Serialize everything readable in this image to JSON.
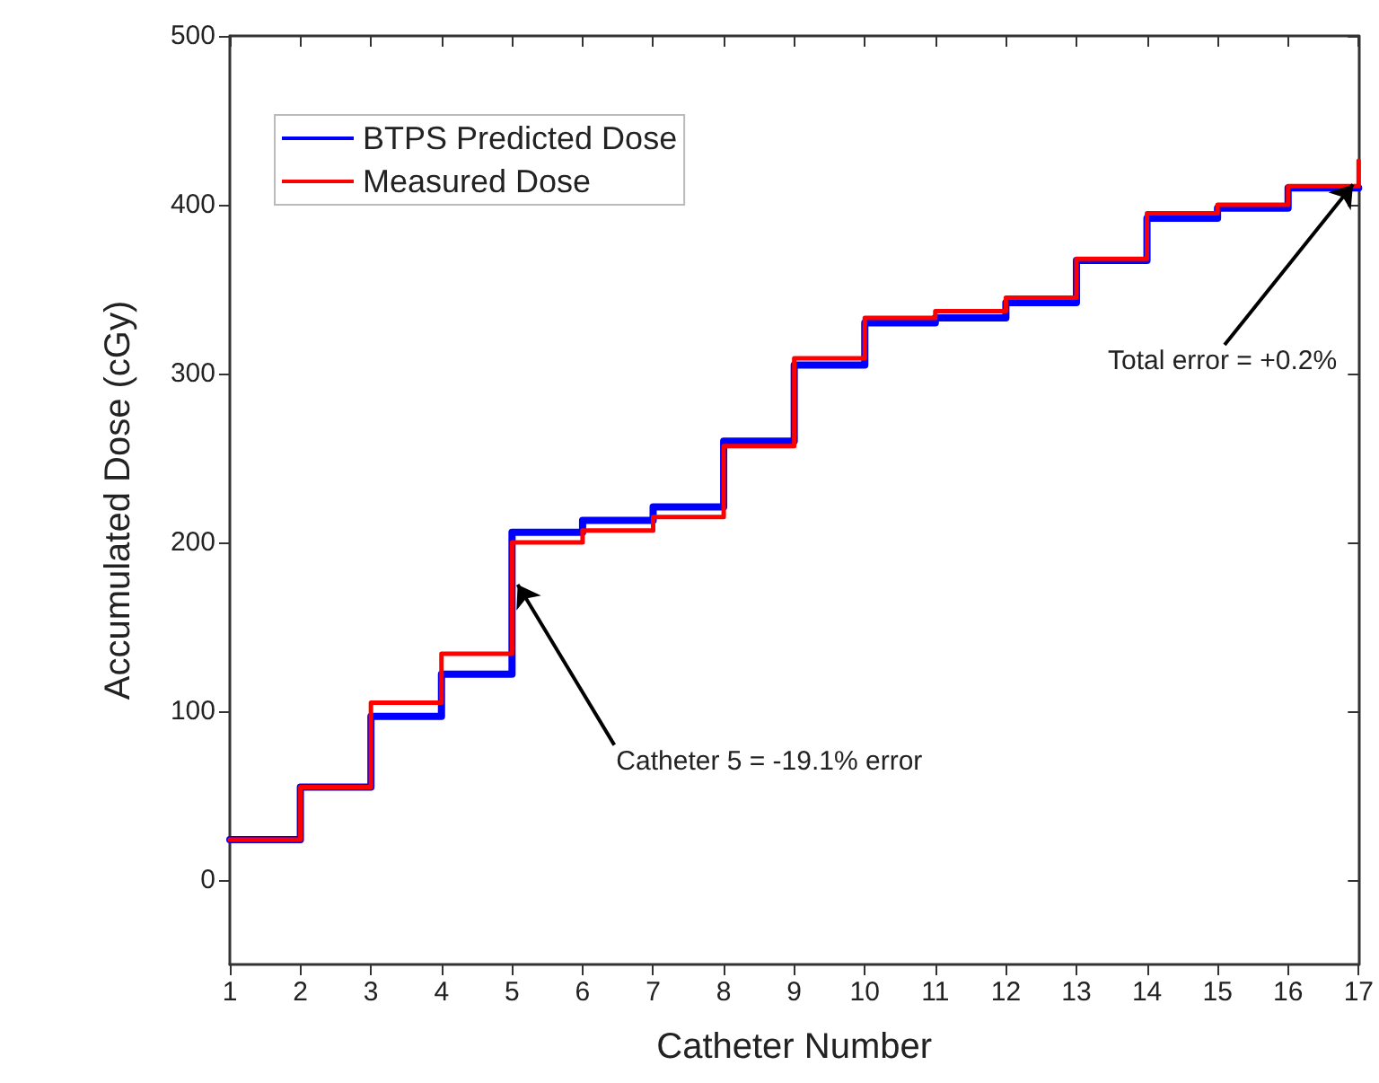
{
  "chart_data": {
    "type": "step",
    "xlabel": "Catheter Number",
    "ylabel": "Accumulated Dose (cGy)",
    "x": [
      1,
      2,
      3,
      4,
      5,
      6,
      7,
      8,
      9,
      10,
      11,
      12,
      13,
      14,
      15,
      16,
      17
    ],
    "series": [
      {
        "name": "BTPS Predicted Dose",
        "color": "#0000ff",
        "values": [
          24,
          55,
          97,
          122,
          206,
          213,
          221,
          260,
          305,
          330,
          333,
          342,
          367,
          392,
          398,
          410,
          410
        ]
      },
      {
        "name": "Measured Dose",
        "color": "#ff0000",
        "values": [
          24,
          55,
          105,
          134,
          200,
          207,
          215,
          257,
          309,
          333,
          337,
          345,
          368,
          395,
          400,
          411,
          426
        ]
      }
    ],
    "xlim": [
      1,
      17
    ],
    "xticks": [
      1,
      2,
      3,
      4,
      5,
      6,
      7,
      8,
      9,
      10,
      11,
      12,
      13,
      14,
      15,
      16,
      17
    ],
    "ylim": [
      -50,
      500
    ],
    "yticks": [
      0,
      100,
      200,
      300,
      400,
      500
    ],
    "annotations": [
      {
        "text": "Catheter 5 = -19.1% error",
        "x": 5,
        "y": 175
      },
      {
        "text": "Total error = +0.2%",
        "x": 17,
        "y": 412
      }
    ],
    "legend": "top left",
    "grid": false,
    "line_style": "solid",
    "marker": "none"
  }
}
